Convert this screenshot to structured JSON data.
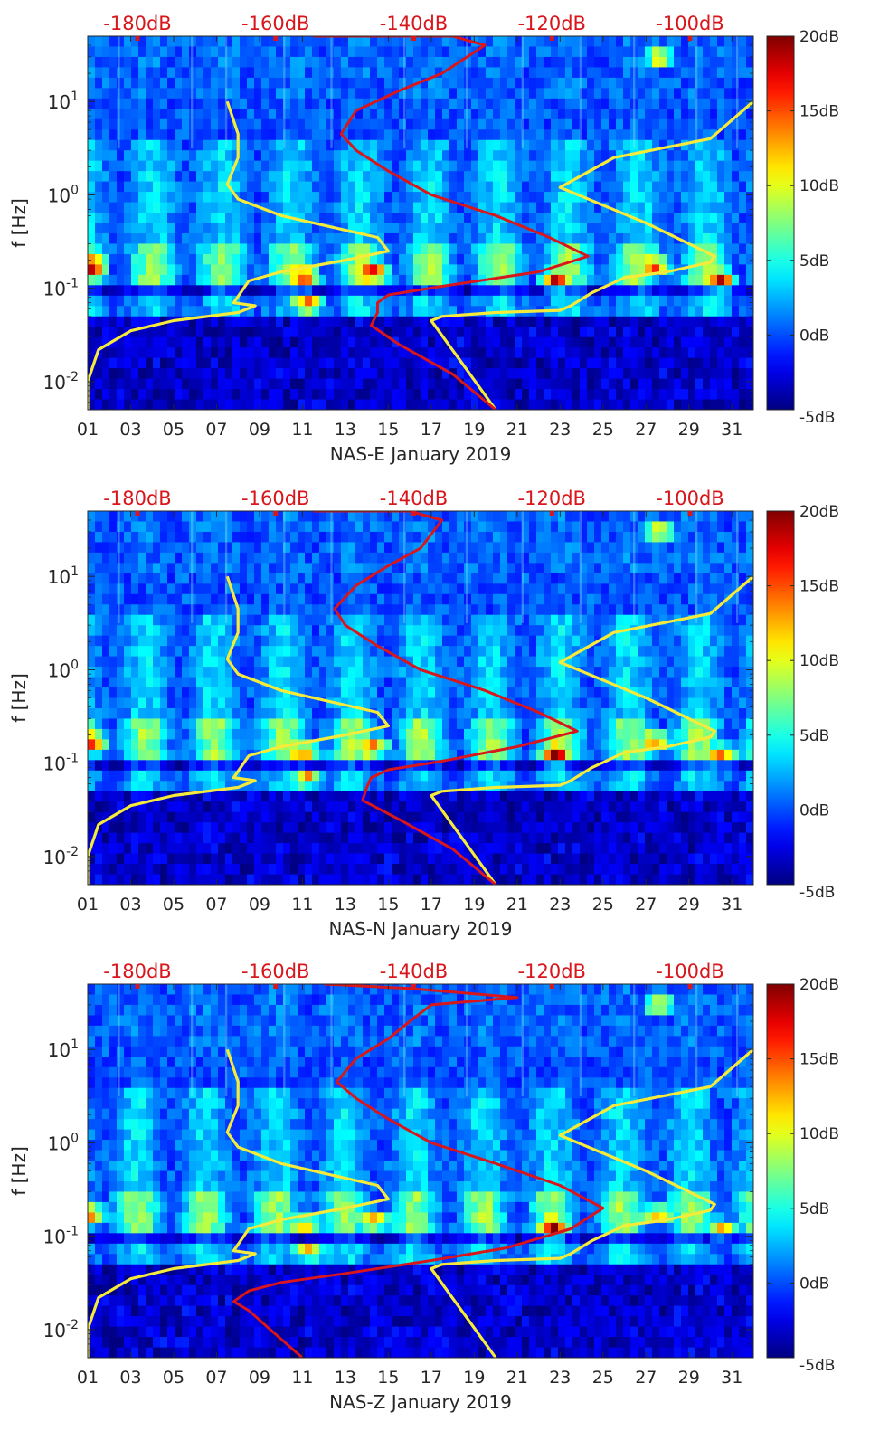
{
  "chart_data": [
    {
      "type": "heatmap",
      "station": "NAS-E",
      "xlabel": "NAS-E January 2019",
      "ylabel": "f [Hz]",
      "x_tick_labels": [
        "01",
        "03",
        "05",
        "07",
        "09",
        "11",
        "13",
        "15",
        "17",
        "19",
        "21",
        "23",
        "25",
        "27",
        "29",
        "31"
      ],
      "y_tick_labels": [
        "10-2",
        "10-1",
        "100",
        "101"
      ],
      "top_tick_labels": [
        "-180dB",
        "-160dB",
        "-140dB",
        "-120dB",
        "-100dB"
      ],
      "colorbar_labels": [
        "-5dB",
        "0dB",
        "5dB",
        "10dB",
        "15dB",
        "20dB"
      ],
      "colormap": "jet",
      "xlim": [
        1,
        32
      ],
      "ylim": [
        0.005,
        50
      ],
      "log_y": true,
      "cmin_db": -5,
      "cmax_db": 20,
      "yellow_lines": [
        {
          "name": "",
          "points": [
            [
              1.0,
              0.005
            ],
            [
              1.0,
              0.01
            ],
            [
              1.5,
              0.022
            ],
            [
              3.0,
              0.035
            ],
            [
              5.0,
              0.045
            ],
            [
              8.0,
              0.055
            ],
            [
              8.8,
              0.065
            ],
            [
              7.8,
              0.07
            ],
            [
              8.5,
              0.12
            ],
            [
              10.0,
              0.15
            ],
            [
              13.0,
              0.2
            ],
            [
              15.0,
              0.25
            ],
            [
              14.5,
              0.35
            ],
            [
              10.0,
              0.6
            ],
            [
              8.0,
              0.9
            ],
            [
              7.5,
              1.3
            ],
            [
              8.0,
              2.5
            ],
            [
              8.0,
              4.5
            ],
            [
              7.5,
              10.0
            ]
          ]
        },
        {
          "name": "",
          "points": [
            [
              20.0,
              0.005
            ],
            [
              18.5,
              0.015
            ],
            [
              17.0,
              0.045
            ],
            [
              17.5,
              0.05
            ],
            [
              20.0,
              0.055
            ],
            [
              23.0,
              0.058
            ],
            [
              23.5,
              0.065
            ],
            [
              24.5,
              0.09
            ],
            [
              26.0,
              0.13
            ],
            [
              28.0,
              0.15
            ],
            [
              30.0,
              0.19
            ],
            [
              30.2,
              0.22
            ],
            [
              27.0,
              0.5
            ],
            [
              23.0,
              1.2
            ],
            [
              25.5,
              2.5
            ],
            [
              30.0,
              4.0
            ],
            [
              32.0,
              10.0
            ]
          ]
        }
      ],
      "red_line": [
        [
          20.0,
          0.005
        ],
        [
          18.0,
          0.012
        ],
        [
          15.5,
          0.025
        ],
        [
          14.2,
          0.04
        ],
        [
          14.5,
          0.055
        ],
        [
          14.5,
          0.07
        ],
        [
          15.0,
          0.085
        ],
        [
          17.5,
          0.105
        ],
        [
          22.0,
          0.15
        ],
        [
          24.3,
          0.22
        ],
        [
          22.5,
          0.35
        ],
        [
          20.0,
          0.6
        ],
        [
          17.0,
          1.0
        ],
        [
          15.0,
          1.8
        ],
        [
          13.5,
          3.0
        ],
        [
          12.8,
          4.5
        ],
        [
          13.5,
          8.0
        ],
        [
          15.5,
          13.0
        ],
        [
          17.5,
          20.0
        ],
        [
          19.5,
          40.0
        ],
        [
          18.0,
          50.0
        ],
        [
          13.0,
          50.0
        ],
        [
          11.5,
          50.0
        ]
      ]
    },
    {
      "type": "heatmap",
      "station": "NAS-N",
      "xlabel": "NAS-N January 2019",
      "ylabel": "f [Hz]",
      "x_tick_labels": [
        "01",
        "03",
        "05",
        "07",
        "09",
        "11",
        "13",
        "15",
        "17",
        "19",
        "21",
        "23",
        "25",
        "27",
        "29",
        "31"
      ],
      "y_tick_labels": [
        "10-2",
        "10-1",
        "100",
        "101"
      ],
      "top_tick_labels": [
        "-180dB",
        "-160dB",
        "-140dB",
        "-120dB",
        "-100dB"
      ],
      "colorbar_labels": [
        "-5dB",
        "0dB",
        "5dB",
        "10dB",
        "15dB",
        "20dB"
      ],
      "colormap": "jet",
      "xlim": [
        1,
        32
      ],
      "ylim": [
        0.005,
        50
      ],
      "log_y": true,
      "cmin_db": -5,
      "cmax_db": 20,
      "yellow_lines": [
        {
          "name": "",
          "points": [
            [
              1.0,
              0.005
            ],
            [
              1.0,
              0.01
            ],
            [
              1.5,
              0.022
            ],
            [
              3.0,
              0.035
            ],
            [
              5.0,
              0.045
            ],
            [
              8.0,
              0.055
            ],
            [
              8.8,
              0.065
            ],
            [
              7.8,
              0.07
            ],
            [
              8.5,
              0.12
            ],
            [
              10.0,
              0.15
            ],
            [
              13.0,
              0.2
            ],
            [
              15.0,
              0.25
            ],
            [
              14.5,
              0.35
            ],
            [
              10.0,
              0.6
            ],
            [
              8.0,
              0.9
            ],
            [
              7.5,
              1.3
            ],
            [
              8.0,
              2.5
            ],
            [
              8.0,
              4.5
            ],
            [
              7.5,
              10.0
            ]
          ]
        },
        {
          "name": "",
          "points": [
            [
              20.0,
              0.005
            ],
            [
              18.5,
              0.015
            ],
            [
              17.0,
              0.045
            ],
            [
              17.5,
              0.05
            ],
            [
              20.0,
              0.055
            ],
            [
              23.0,
              0.058
            ],
            [
              23.5,
              0.065
            ],
            [
              24.5,
              0.09
            ],
            [
              26.0,
              0.13
            ],
            [
              28.0,
              0.15
            ],
            [
              30.0,
              0.19
            ],
            [
              30.2,
              0.22
            ],
            [
              27.0,
              0.5
            ],
            [
              23.0,
              1.2
            ],
            [
              25.5,
              2.5
            ],
            [
              30.0,
              4.0
            ],
            [
              32.0,
              10.0
            ]
          ]
        }
      ],
      "red_line": [
        [
          20.0,
          0.005
        ],
        [
          18.0,
          0.012
        ],
        [
          15.5,
          0.025
        ],
        [
          13.8,
          0.04
        ],
        [
          14.0,
          0.055
        ],
        [
          14.2,
          0.07
        ],
        [
          15.0,
          0.085
        ],
        [
          17.5,
          0.105
        ],
        [
          21.0,
          0.15
        ],
        [
          23.8,
          0.22
        ],
        [
          22.0,
          0.35
        ],
        [
          19.5,
          0.6
        ],
        [
          16.5,
          1.0
        ],
        [
          14.5,
          1.8
        ],
        [
          13.0,
          3.0
        ],
        [
          12.5,
          4.5
        ],
        [
          13.5,
          8.0
        ],
        [
          15.0,
          13.0
        ],
        [
          16.5,
          20.0
        ],
        [
          17.5,
          40.0
        ],
        [
          16.0,
          50.0
        ],
        [
          11.5,
          50.0
        ]
      ]
    },
    {
      "type": "heatmap",
      "station": "NAS-Z",
      "xlabel": "NAS-Z January 2019",
      "ylabel": "f [Hz]",
      "x_tick_labels": [
        "01",
        "03",
        "05",
        "07",
        "09",
        "11",
        "13",
        "15",
        "17",
        "19",
        "21",
        "23",
        "25",
        "27",
        "29",
        "31"
      ],
      "y_tick_labels": [
        "10-2",
        "10-1",
        "100",
        "101"
      ],
      "top_tick_labels": [
        "-180dB",
        "-160dB",
        "-140dB",
        "-120dB",
        "-100dB"
      ],
      "colorbar_labels": [
        "-5dB",
        "0dB",
        "5dB",
        "10dB",
        "15dB",
        "20dB"
      ],
      "colormap": "jet",
      "xlim": [
        1,
        32
      ],
      "ylim": [
        0.005,
        50
      ],
      "log_y": true,
      "cmin_db": -5,
      "cmax_db": 20,
      "yellow_lines": [
        {
          "name": "",
          "points": [
            [
              1.0,
              0.005
            ],
            [
              1.0,
              0.01
            ],
            [
              1.5,
              0.022
            ],
            [
              3.0,
              0.035
            ],
            [
              5.0,
              0.045
            ],
            [
              8.0,
              0.055
            ],
            [
              8.8,
              0.065
            ],
            [
              7.8,
              0.07
            ],
            [
              8.5,
              0.12
            ],
            [
              10.0,
              0.15
            ],
            [
              13.0,
              0.2
            ],
            [
              15.0,
              0.25
            ],
            [
              14.5,
              0.35
            ],
            [
              10.0,
              0.6
            ],
            [
              8.0,
              0.9
            ],
            [
              7.5,
              1.3
            ],
            [
              8.0,
              2.5
            ],
            [
              8.0,
              4.5
            ],
            [
              7.5,
              10.0
            ]
          ]
        },
        {
          "name": "",
          "points": [
            [
              20.0,
              0.005
            ],
            [
              18.5,
              0.015
            ],
            [
              17.0,
              0.045
            ],
            [
              17.5,
              0.05
            ],
            [
              20.0,
              0.055
            ],
            [
              23.0,
              0.058
            ],
            [
              23.5,
              0.065
            ],
            [
              24.5,
              0.09
            ],
            [
              26.0,
              0.13
            ],
            [
              28.0,
              0.15
            ],
            [
              30.0,
              0.19
            ],
            [
              30.2,
              0.22
            ],
            [
              27.0,
              0.5
            ],
            [
              23.0,
              1.2
            ],
            [
              25.5,
              2.5
            ],
            [
              30.0,
              4.0
            ],
            [
              32.0,
              10.0
            ]
          ]
        }
      ],
      "red_line": [
        [
          11.0,
          0.005
        ],
        [
          9.5,
          0.01
        ],
        [
          8.5,
          0.016
        ],
        [
          7.8,
          0.02
        ],
        [
          8.5,
          0.026
        ],
        [
          10.0,
          0.032
        ],
        [
          13.0,
          0.04
        ],
        [
          17.0,
          0.055
        ],
        [
          20.5,
          0.075
        ],
        [
          23.5,
          0.12
        ],
        [
          25.0,
          0.2
        ],
        [
          23.0,
          0.35
        ],
        [
          20.0,
          0.6
        ],
        [
          17.0,
          1.0
        ],
        [
          15.0,
          1.8
        ],
        [
          13.5,
          3.0
        ],
        [
          12.6,
          4.5
        ],
        [
          13.5,
          8.0
        ],
        [
          15.0,
          13.0
        ],
        [
          16.0,
          20.0
        ],
        [
          17.0,
          30.0
        ],
        [
          21.0,
          36.0
        ],
        [
          16.0,
          45.0
        ],
        [
          12.0,
          50.0
        ]
      ]
    }
  ]
}
